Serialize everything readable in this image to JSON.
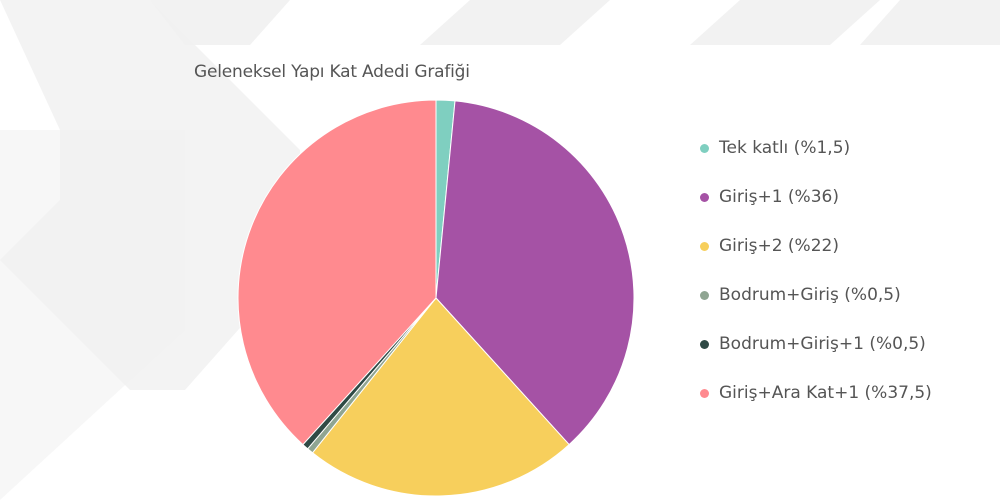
{
  "chart_data": {
    "type": "pie",
    "title": "Geleneksel Yapı Kat Adedi Grafiği",
    "legend_position": "right",
    "slices": [
      {
        "label": "Tek katlı (%1,5)",
        "value": 1.5,
        "color": "#7fcfc0"
      },
      {
        "label": "Giriş+1 (%36)",
        "value": 36,
        "color": "#a552a5"
      },
      {
        "label": "Giriş+2 (%22)",
        "value": 22,
        "color": "#f7cf5c"
      },
      {
        "label": "Bodrum+Giriş  (%0,5)",
        "value": 0.5,
        "color": "#8fa592"
      },
      {
        "label": "Bodrum+Giriş+1 (%0,5)",
        "value": 0.5,
        "color": "#2f4a45"
      },
      {
        "label": "Giriş+Ara Kat+1 (%37,5)",
        "value": 37.5,
        "color": "#ff8a8f"
      }
    ]
  }
}
